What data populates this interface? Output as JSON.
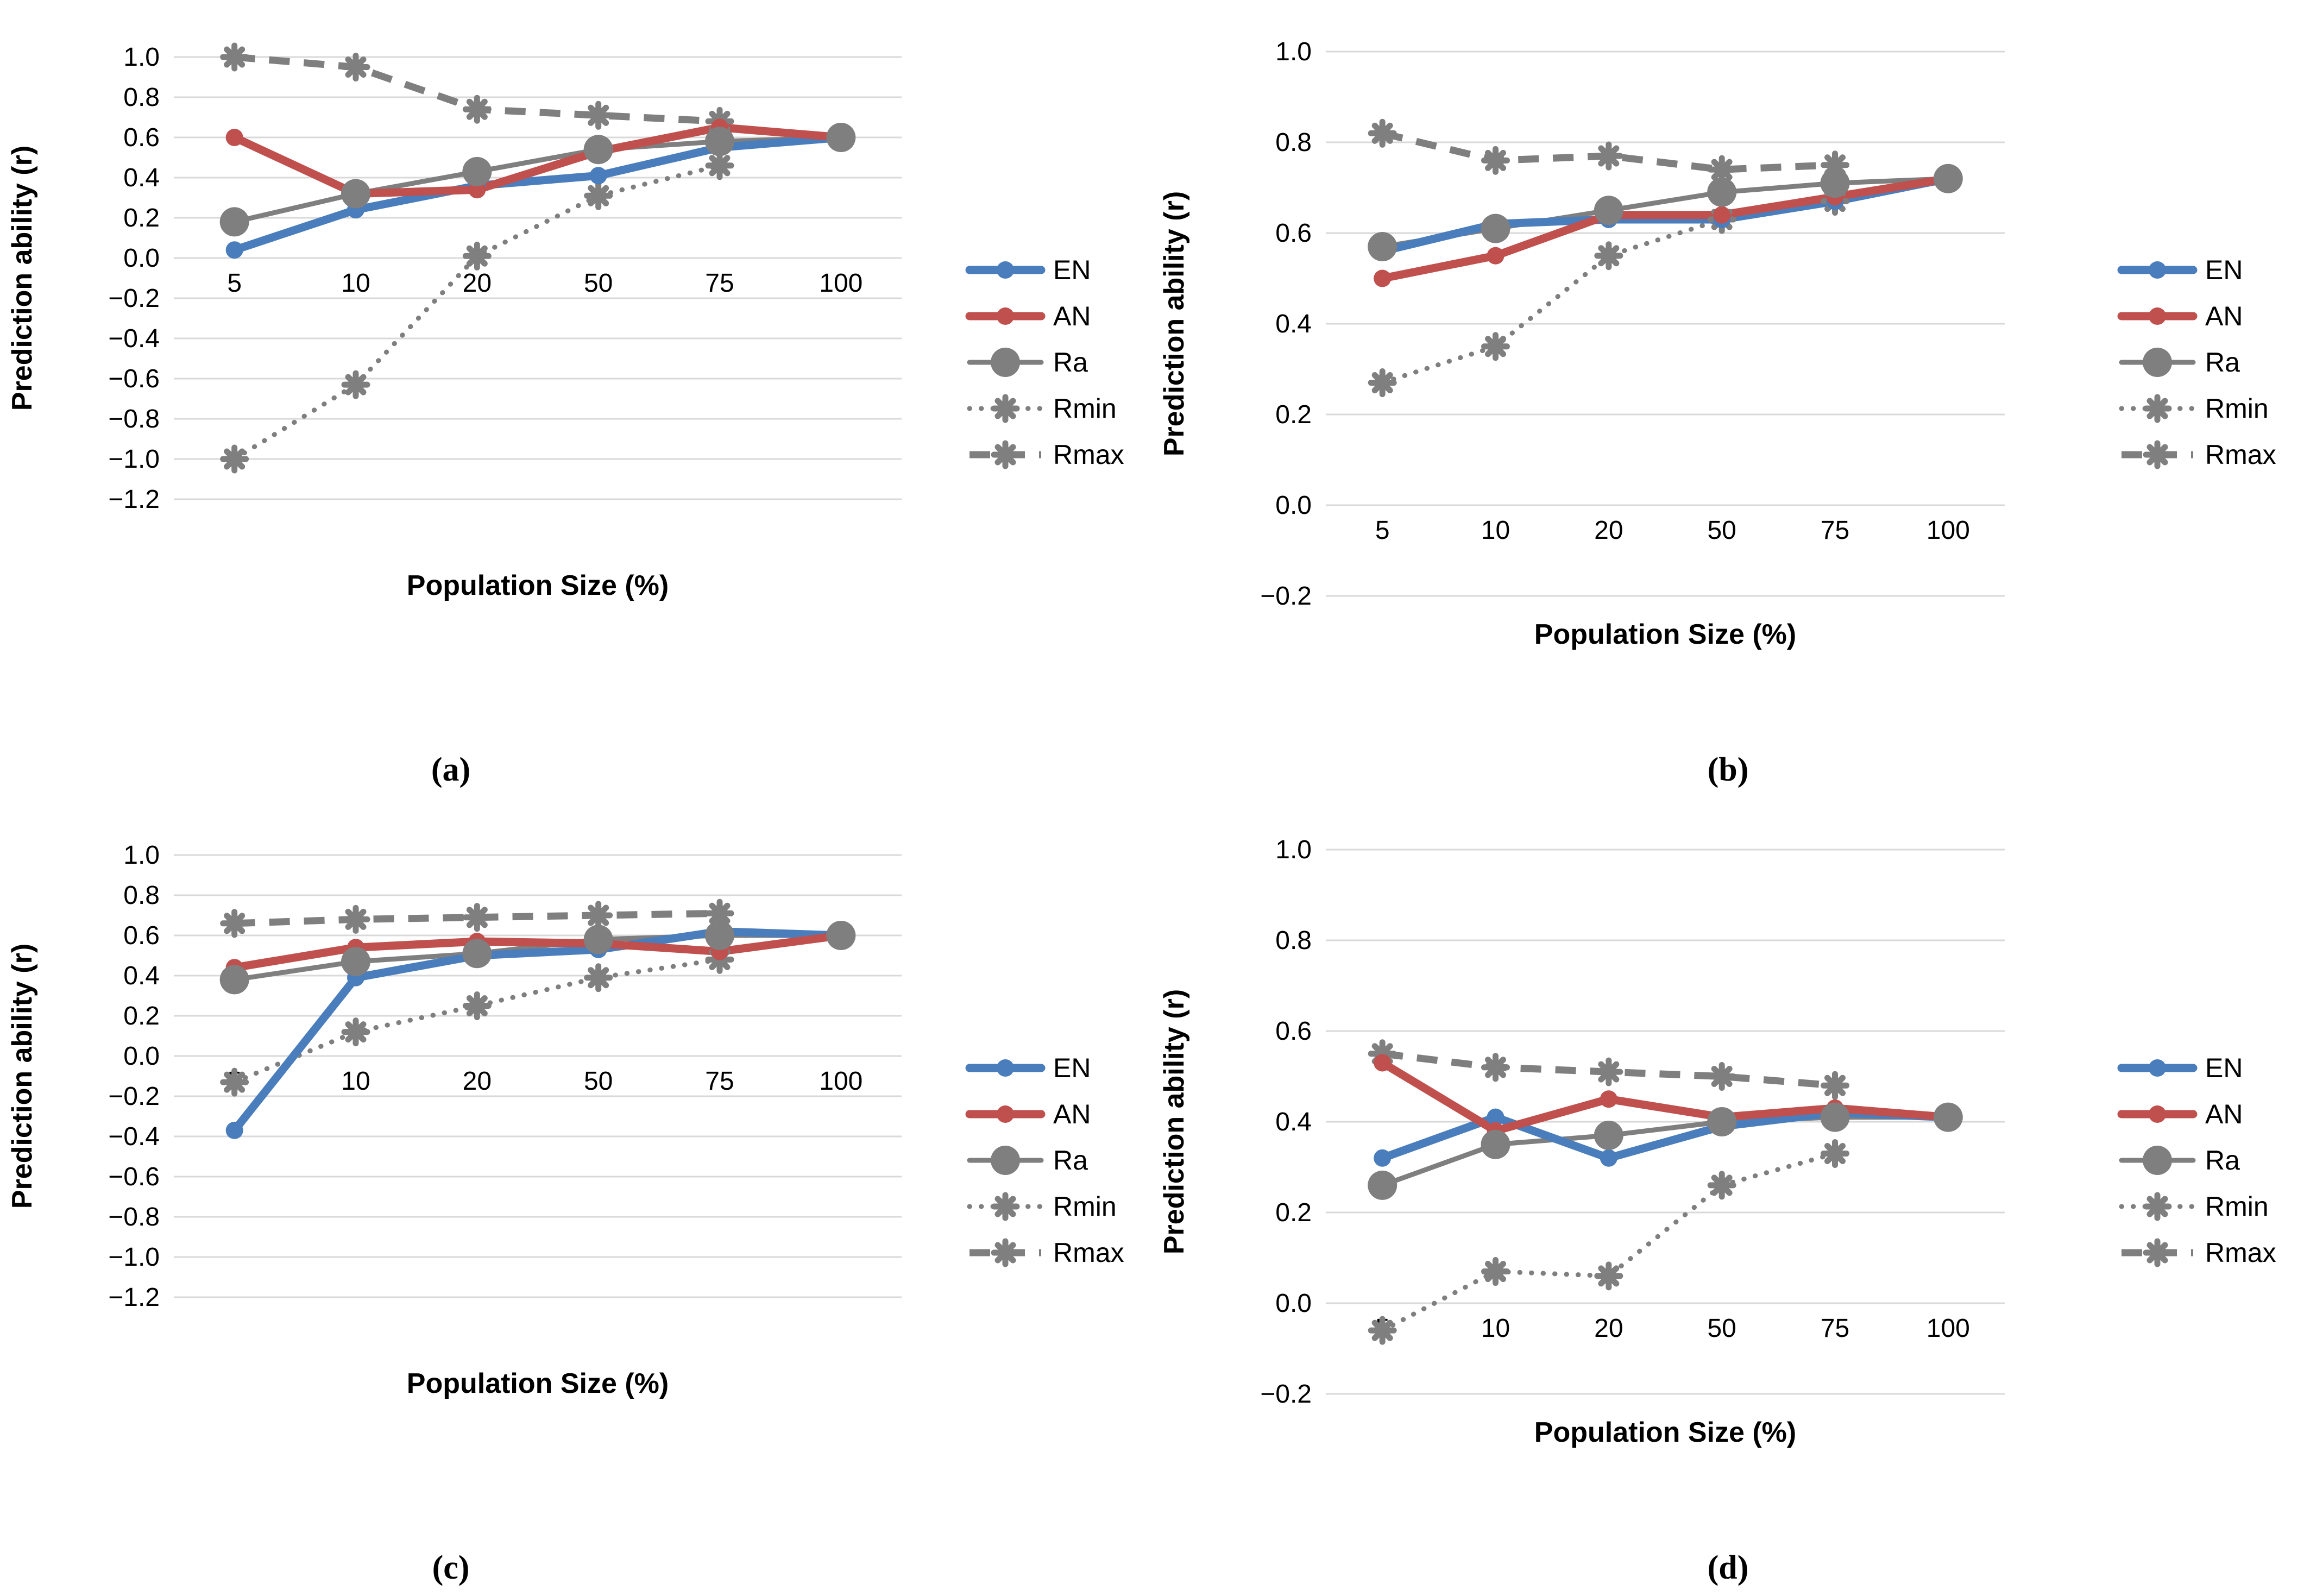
{
  "colors": {
    "en_blue": "#4a7dbc",
    "an_red": "#c0504d",
    "series_gray": "#7f7f7f",
    "gridline": "#d9d9d9",
    "text": "#000000",
    "background": "#ffffff"
  },
  "chart_data": [
    {
      "id": "a",
      "caption": "(a)",
      "type": "line",
      "xlabel": "Population Size (%)",
      "ylabel": "Prediction ability (r)",
      "categories": [
        "5",
        "10",
        "20",
        "50",
        "75",
        "100"
      ],
      "ylim": [
        -1.2,
        1.0
      ],
      "ytick_step": 0.2,
      "grid": "horizontal",
      "legend_position": "right",
      "series": [
        {
          "name": "EN",
          "color": "#4a7dbc",
          "line_style": "solid",
          "marker": "dot",
          "values": [
            0.04,
            0.24,
            0.36,
            0.41,
            0.55,
            0.6
          ]
        },
        {
          "name": "AN",
          "color": "#c0504d",
          "line_style": "solid",
          "marker": "dot",
          "values": [
            0.6,
            0.32,
            0.34,
            0.53,
            0.65,
            0.6
          ]
        },
        {
          "name": "Ra",
          "color": "#7f7f7f",
          "line_style": "solid",
          "marker": "dot-large",
          "values": [
            0.18,
            0.32,
            0.43,
            0.54,
            0.58,
            0.6
          ]
        },
        {
          "name": "Rmin",
          "color": "#7f7f7f",
          "line_style": "dotted",
          "marker": "star",
          "values": [
            -1.0,
            -0.63,
            0.01,
            0.31,
            0.46,
            null
          ]
        },
        {
          "name": "Rmax",
          "color": "#7f7f7f",
          "line_style": "dashed",
          "marker": "star",
          "values": [
            1.0,
            0.95,
            0.74,
            0.71,
            0.68,
            null
          ]
        }
      ]
    },
    {
      "id": "b",
      "caption": "(b)",
      "type": "line",
      "xlabel": "Population Size (%)",
      "ylabel": "Prediction ability (r)",
      "categories": [
        "5",
        "10",
        "20",
        "50",
        "75",
        "100"
      ],
      "ylim": [
        -0.2,
        1.0
      ],
      "ytick_step": 0.2,
      "grid": "horizontal",
      "legend_position": "right",
      "series": [
        {
          "name": "EN",
          "color": "#4a7dbc",
          "line_style": "solid",
          "marker": "dot",
          "values": [
            0.56,
            0.62,
            0.63,
            0.63,
            0.67,
            0.72
          ]
        },
        {
          "name": "AN",
          "color": "#c0504d",
          "line_style": "solid",
          "marker": "dot",
          "values": [
            0.5,
            0.55,
            0.64,
            0.64,
            0.68,
            0.72
          ]
        },
        {
          "name": "Ra",
          "color": "#7f7f7f",
          "line_style": "solid",
          "marker": "dot-large",
          "values": [
            0.57,
            0.61,
            0.65,
            0.69,
            0.71,
            0.72
          ]
        },
        {
          "name": "Rmin",
          "color": "#7f7f7f",
          "line_style": "dotted",
          "marker": "star",
          "values": [
            0.27,
            0.35,
            0.55,
            0.63,
            0.67,
            null
          ]
        },
        {
          "name": "Rmax",
          "color": "#7f7f7f",
          "line_style": "dashed",
          "marker": "star",
          "values": [
            0.82,
            0.76,
            0.77,
            0.74,
            0.75,
            null
          ]
        }
      ]
    },
    {
      "id": "c",
      "caption": "(c)",
      "type": "line",
      "xlabel": "Population Size (%)",
      "ylabel": "Prediction ability (r)",
      "categories": [
        "5",
        "10",
        "20",
        "50",
        "75",
        "100"
      ],
      "ylim": [
        -1.2,
        1.0
      ],
      "ytick_step": 0.2,
      "grid": "horizontal",
      "legend_position": "right",
      "series": [
        {
          "name": "EN",
          "color": "#4a7dbc",
          "line_style": "solid",
          "marker": "dot",
          "values": [
            -0.37,
            0.39,
            0.5,
            0.53,
            0.62,
            0.6
          ]
        },
        {
          "name": "AN",
          "color": "#c0504d",
          "line_style": "solid",
          "marker": "dot",
          "values": [
            0.44,
            0.54,
            0.57,
            0.56,
            0.52,
            0.6
          ]
        },
        {
          "name": "Ra",
          "color": "#7f7f7f",
          "line_style": "solid",
          "marker": "dot-large",
          "values": [
            0.38,
            0.47,
            0.51,
            0.58,
            0.6,
            0.6
          ]
        },
        {
          "name": "Rmin",
          "color": "#7f7f7f",
          "line_style": "dotted",
          "marker": "star",
          "values": [
            -0.13,
            0.12,
            0.25,
            0.39,
            0.48,
            null
          ]
        },
        {
          "name": "Rmax",
          "color": "#7f7f7f",
          "line_style": "dashed",
          "marker": "star",
          "values": [
            0.66,
            0.68,
            0.69,
            0.7,
            0.71,
            null
          ]
        }
      ]
    },
    {
      "id": "d",
      "caption": "(d)",
      "type": "line",
      "xlabel": "Population Size (%)",
      "ylabel": "Prediction ability (r)",
      "categories": [
        "5",
        "10",
        "20",
        "50",
        "75",
        "100"
      ],
      "ylim": [
        -0.2,
        1.0
      ],
      "ytick_step": 0.2,
      "grid": "horizontal",
      "legend_position": "right",
      "series": [
        {
          "name": "EN",
          "color": "#4a7dbc",
          "line_style": "solid",
          "marker": "dot",
          "values": [
            0.32,
            0.41,
            0.32,
            0.39,
            0.42,
            0.41
          ]
        },
        {
          "name": "AN",
          "color": "#c0504d",
          "line_style": "solid",
          "marker": "dot",
          "values": [
            0.53,
            0.38,
            0.45,
            0.41,
            0.43,
            0.41
          ]
        },
        {
          "name": "Ra",
          "color": "#7f7f7f",
          "line_style": "solid",
          "marker": "dot-large",
          "values": [
            0.26,
            0.35,
            0.37,
            0.4,
            0.41,
            0.41
          ]
        },
        {
          "name": "Rmin",
          "color": "#7f7f7f",
          "line_style": "dotted",
          "marker": "star",
          "values": [
            -0.06,
            0.07,
            0.06,
            0.26,
            0.33,
            null
          ]
        },
        {
          "name": "Rmax",
          "color": "#7f7f7f",
          "line_style": "dashed",
          "marker": "star",
          "values": [
            0.55,
            0.52,
            0.51,
            0.5,
            0.48,
            null
          ]
        }
      ]
    }
  ]
}
